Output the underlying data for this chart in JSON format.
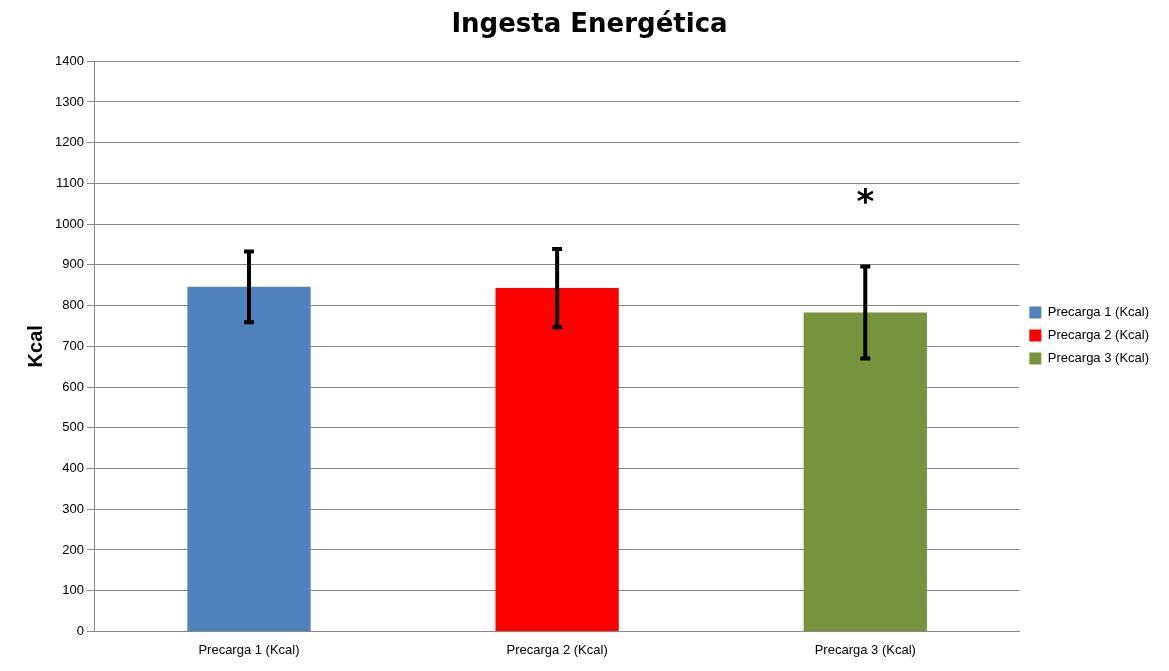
{
  "chart_data": {
    "type": "bar",
    "title": "Ingesta Energética",
    "ylabel": "Kcal",
    "categories": [
      "Precarga 1 (Kcal)",
      "Precarga 2 (Kcal)",
      "Precarga 3 (Kcal)"
    ],
    "series": [
      {
        "name": "Precarga 1 (Kcal)",
        "color": "#4f81bd",
        "values": [
          846,
          null,
          null
        ],
        "errors": [
          87,
          null,
          null
        ]
      },
      {
        "name": "Precarga 2 (Kcal)",
        "color": "#ff0000",
        "values": [
          null,
          843,
          null
        ],
        "errors": [
          null,
          96,
          null
        ]
      },
      {
        "name": "Precarga 3 (Kcal)",
        "color": "#77933c",
        "values": [
          null,
          null,
          783
        ],
        "errors": [
          null,
          null,
          113
        ]
      }
    ],
    "ylim": [
      0,
      1400
    ],
    "yticks": [
      0,
      100,
      200,
      300,
      400,
      500,
      600,
      700,
      800,
      900,
      1000,
      1100,
      1200,
      1300,
      1400
    ],
    "grid": "y",
    "legend": "right",
    "annotations": [
      "*"
    ]
  }
}
